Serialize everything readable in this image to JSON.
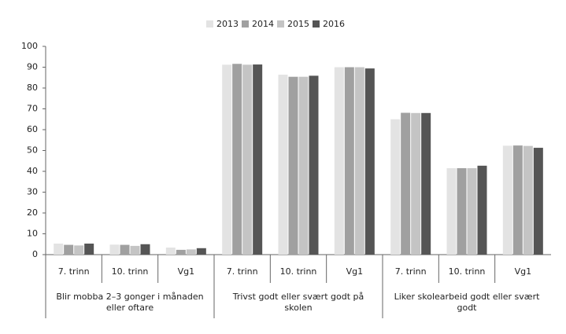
{
  "chart_data": {
    "type": "bar",
    "categories": [
      "7. trinn",
      "10. trinn",
      "Vg1",
      "7. trinn",
      "10. trinn",
      "Vg1",
      "7. trinn",
      "10. trinn",
      "Vg1"
    ],
    "groups": [
      "Blir mobba 2–3 gonger i månaden eller oftare",
      "Trivst godt eller svært godt på skolen",
      "Liker skolearbeid godt eller svært godt"
    ],
    "series": [
      {
        "name": "2013",
        "color": "#e3e3e3",
        "values": [
          5.3,
          4.8,
          3.4,
          91.2,
          86.4,
          90,
          65,
          41.5,
          52.3
        ]
      },
      {
        "name": "2014",
        "color": "#a0a0a0",
        "values": [
          4.7,
          4.7,
          2.3,
          91.6,
          85.4,
          90,
          68.1,
          41.5,
          52.4
        ]
      },
      {
        "name": "2015",
        "color": "#c4c4c4",
        "values": [
          4.4,
          4.2,
          2.5,
          91.2,
          85.4,
          90,
          68,
          41.5,
          52.2
        ]
      },
      {
        "name": "2016",
        "color": "#555555",
        "values": [
          5.3,
          5.0,
          3.1,
          91.3,
          85.9,
          89.4,
          68,
          42.7,
          51.3
        ]
      }
    ],
    "ylim": [
      0,
      100
    ],
    "yticks": [
      0,
      10,
      20,
      30,
      40,
      50,
      60,
      70,
      80,
      90,
      100
    ],
    "grid": false
  }
}
